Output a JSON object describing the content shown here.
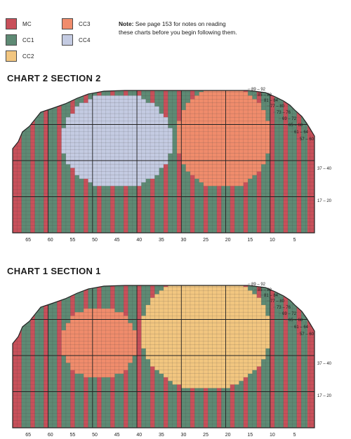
{
  "legend": {
    "items": [
      {
        "key": "mc",
        "label": "MC",
        "color": "#c8505a"
      },
      {
        "key": "cc1",
        "label": "CC1",
        "color": "#5e8a74"
      },
      {
        "key": "cc2",
        "label": "CC2",
        "color": "#f2c680"
      },
      {
        "key": "cc3",
        "label": "CC3",
        "color": "#f08c6c"
      },
      {
        "key": "cc4",
        "label": "CC4",
        "color": "#c4cbe2"
      }
    ]
  },
  "note": {
    "label": "Note:",
    "text": " See page 153 for notes on reading these charts before you begin following them."
  },
  "charts": [
    {
      "title": "CHART 2 SECTION 2",
      "x_ticks": [
        "65",
        "60",
        "55",
        "50",
        "45",
        "40",
        "35",
        "30",
        "25",
        "20",
        "15",
        "10",
        "5"
      ],
      "row_labels": [
        "89 – 92",
        "85 – 88",
        "81 – 84",
        "77 – 80",
        "73 – 76",
        "69 – 72",
        "65 – 68",
        "61 – 64",
        "57 – 60",
        "37 – 40",
        "17 – 20"
      ],
      "motifs": [
        {
          "color": "cc4",
          "shape": "ellipse",
          "center_stitch": 45,
          "center_row": 26,
          "half_width": 12,
          "half_height": 13
        },
        {
          "color": "cc3",
          "shape": "ellipse",
          "center_stitch": 21,
          "center_row": 27,
          "half_width": 10,
          "half_height": 14
        }
      ]
    },
    {
      "title": "CHART 1 SECTION 1",
      "x_ticks": [
        "65",
        "60",
        "55",
        "50",
        "45",
        "40",
        "35",
        "30",
        "25",
        "20",
        "15",
        "10",
        "5"
      ],
      "row_labels": [
        "89 – 92",
        "85 – 88",
        "81 – 84",
        "77 – 80",
        "73 – 76",
        "69 – 72",
        "65 – 68",
        "61 – 64",
        "57 – 60",
        "37 – 40",
        "17 – 20"
      ],
      "motifs": [
        {
          "color": "cc3",
          "shape": "ellipse",
          "center_stitch": 49,
          "center_row": 24,
          "half_width": 8,
          "half_height": 10
        },
        {
          "color": "cc2",
          "shape": "ellipse",
          "center_stitch": 25,
          "center_row": 27,
          "half_width": 14,
          "half_height": 16
        }
      ]
    }
  ]
}
